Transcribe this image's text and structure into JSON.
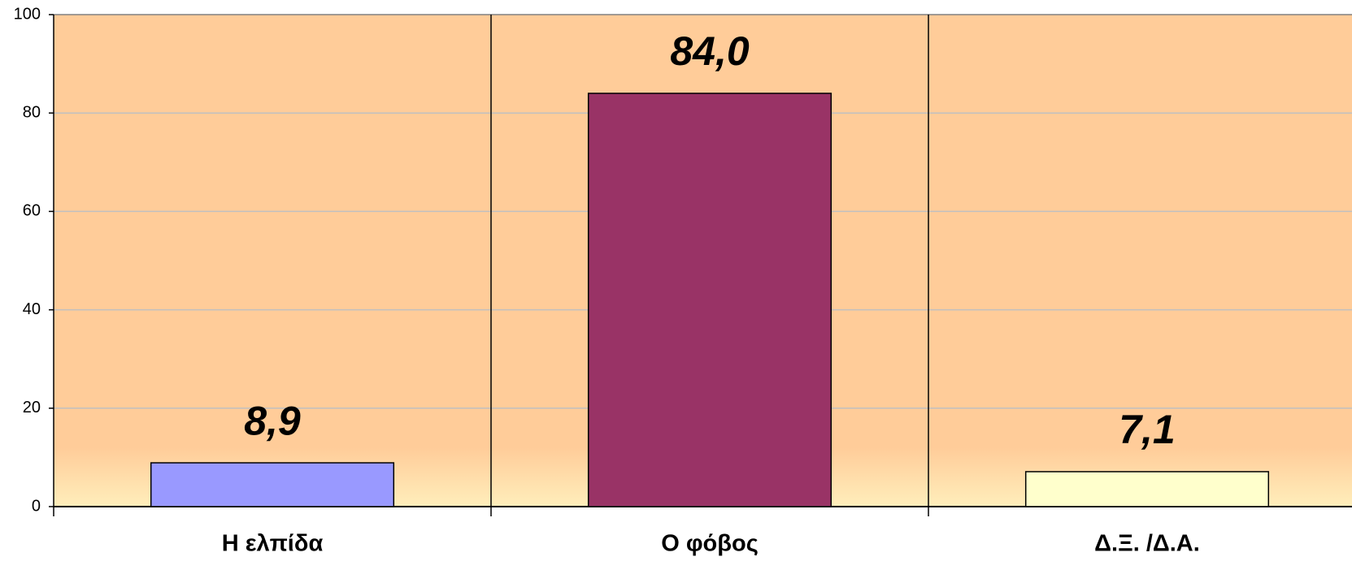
{
  "chart_data": {
    "type": "bar",
    "categories": [
      "Η ελπίδα",
      "Ο φόβος",
      "Δ.Ξ. /Δ.Α."
    ],
    "values": [
      8.9,
      84.0,
      7.1
    ],
    "value_labels": [
      "8,9",
      "84,0",
      "7,1"
    ],
    "colors": [
      "#9999ff",
      "#993366",
      "#ffffcc"
    ],
    "ylim": [
      0,
      100
    ],
    "yticks": [
      0,
      20,
      40,
      60,
      80,
      100
    ],
    "grid": true
  }
}
